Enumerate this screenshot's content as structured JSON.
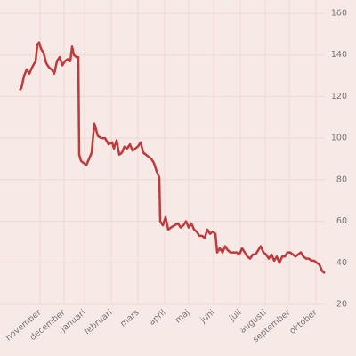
{
  "chart_data": {
    "type": "line",
    "x": [
      0,
      2,
      5,
      8,
      11,
      14,
      18,
      20,
      22,
      24,
      27,
      30,
      33,
      36,
      39,
      42,
      45,
      48,
      51,
      54,
      57,
      59,
      61,
      64,
      66,
      67,
      69,
      72,
      75,
      78,
      81,
      84,
      86,
      88,
      92,
      96,
      100,
      104,
      106,
      109,
      112,
      115,
      118,
      121,
      124,
      127,
      130,
      133,
      136,
      139,
      142,
      145,
      148,
      151,
      154,
      157,
      158,
      161,
      164,
      167,
      170,
      174,
      178,
      181,
      184,
      187,
      190,
      193,
      196,
      199,
      202,
      205,
      208,
      211,
      214,
      217,
      220,
      222,
      225,
      228,
      231,
      234,
      237,
      240,
      244,
      247,
      250,
      253,
      256,
      259,
      262,
      265,
      268,
      271,
      274,
      277,
      280,
      283,
      286,
      289,
      292,
      295,
      298,
      301,
      304,
      307,
      310,
      313,
      316,
      319,
      322,
      325,
      328,
      331,
      334,
      337,
      340,
      343
    ],
    "series": [
      {
        "name": "line",
        "color": "#c0393b",
        "values": [
          123,
          124,
          130,
          133,
          131,
          134,
          137,
          145,
          146,
          143,
          141,
          136,
          134,
          133,
          131,
          137,
          139,
          135,
          137,
          138,
          137,
          144,
          140,
          139,
          139,
          92,
          89,
          88,
          87,
          90,
          93,
          107,
          104,
          101,
          100,
          100,
          97,
          98,
          95,
          99,
          92,
          93,
          96,
          95,
          97,
          94,
          95,
          96,
          98,
          93,
          92,
          91,
          90,
          88,
          84,
          81,
          60,
          58,
          62,
          56,
          57,
          58,
          59,
          57,
          58,
          60,
          57,
          59,
          56,
          55,
          53,
          53,
          52,
          56,
          54,
          55,
          54,
          45,
          47,
          45,
          48,
          46,
          45,
          45,
          45,
          44,
          47,
          45,
          43,
          42,
          44,
          44,
          46,
          48,
          45,
          44,
          42,
          44,
          41,
          43,
          40,
          43,
          43,
          45,
          45,
          44,
          43,
          44,
          45,
          43,
          42,
          42,
          41,
          41,
          40,
          39,
          36,
          35
        ]
      }
    ],
    "xlim": [
      0,
      343
    ],
    "xticks": [
      {
        "value": 23,
        "label": "november"
      },
      {
        "value": 50,
        "label": "december"
      },
      {
        "value": 73,
        "label": "januari"
      },
      {
        "value": 103,
        "label": "februari"
      },
      {
        "value": 133,
        "label": "mars"
      },
      {
        "value": 163,
        "label": "april"
      },
      {
        "value": 190,
        "label": "maj"
      },
      {
        "value": 218,
        "label": "juni"
      },
      {
        "value": 248,
        "label": "juli"
      },
      {
        "value": 276,
        "label": "augusti"
      },
      {
        "value": 303,
        "label": "september"
      },
      {
        "value": 333,
        "label": "oktober"
      }
    ],
    "ylim": [
      20,
      160
    ],
    "yticks": [
      20,
      40,
      60,
      80,
      100,
      120,
      140,
      160
    ],
    "grid": true
  }
}
